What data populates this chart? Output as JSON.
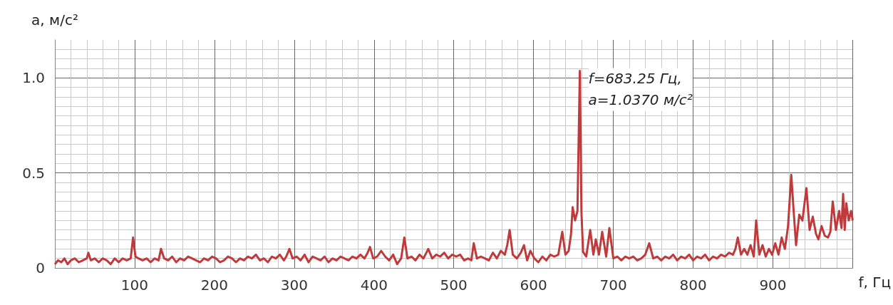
{
  "chart_data": {
    "type": "line",
    "xlabel": "f, Гц",
    "ylabel": "a, м/с²",
    "annotations": [
      "f=683.25 Гц,\na=1.0370 м/с²"
    ],
    "series": [
      {
        "color": "#c0393b",
        "x": [
          0,
          4,
          8,
          12,
          16,
          20,
          25,
          30,
          35,
          40,
          42,
          45,
          50,
          55,
          60,
          65,
          70,
          75,
          80,
          85,
          90,
          95,
          98,
          101,
          105,
          110,
          115,
          120,
          125,
          130,
          133,
          137,
          142,
          147,
          152,
          157,
          162,
          167,
          172,
          177,
          182,
          187,
          192,
          197,
          202,
          207,
          212,
          217,
          222,
          227,
          232,
          237,
          242,
          247,
          252,
          257,
          262,
          267,
          272,
          277,
          282,
          287,
          290,
          294,
          298,
          303,
          308,
          313,
          318,
          323,
          328,
          333,
          338,
          343,
          348,
          353,
          358,
          363,
          368,
          373,
          378,
          383,
          388,
          392,
          395,
          399,
          404,
          409,
          414,
          419,
          424,
          429,
          434,
          438,
          442,
          447,
          452,
          457,
          462,
          468,
          473,
          478,
          483,
          488,
          493,
          498,
          503,
          508,
          513,
          518,
          522,
          525,
          529,
          534,
          539,
          544,
          549,
          554,
          559,
          564,
          567,
          570,
          574,
          579,
          584,
          588,
          592,
          596,
          601,
          606,
          611,
          616,
          621,
          626,
          631,
          636,
          640,
          644,
          647,
          649,
          652,
          655,
          658,
          660,
          662,
          666,
          671,
          675,
          678,
          682,
          686,
          691,
          695,
          700,
          705,
          710,
          715,
          720,
          725,
          730,
          735,
          740,
          745,
          750,
          755,
          760,
          765,
          770,
          775,
          780,
          785,
          790,
          795,
          800,
          805,
          810,
          815,
          820,
          825,
          830,
          835,
          840,
          845,
          850,
          853,
          856,
          860,
          864,
          868,
          872,
          876,
          879,
          883,
          887,
          891,
          895,
          899,
          903,
          907,
          911,
          915,
          919,
          923,
          926,
          929,
          933,
          937,
          942,
          946,
          950,
          954,
          957,
          961,
          965,
          969,
          972,
          975,
          979,
          983,
          986,
          988,
          990,
          992,
          995,
          998,
          1000
        ],
        "values": [
          0.02,
          0.04,
          0.03,
          0.05,
          0.02,
          0.04,
          0.05,
          0.03,
          0.04,
          0.05,
          0.08,
          0.04,
          0.05,
          0.03,
          0.05,
          0.04,
          0.02,
          0.05,
          0.03,
          0.05,
          0.04,
          0.05,
          0.16,
          0.06,
          0.05,
          0.04,
          0.05,
          0.03,
          0.05,
          0.04,
          0.1,
          0.05,
          0.04,
          0.06,
          0.03,
          0.05,
          0.04,
          0.06,
          0.05,
          0.04,
          0.03,
          0.05,
          0.04,
          0.06,
          0.05,
          0.03,
          0.04,
          0.06,
          0.05,
          0.03,
          0.05,
          0.04,
          0.06,
          0.05,
          0.07,
          0.04,
          0.05,
          0.03,
          0.06,
          0.05,
          0.07,
          0.04,
          0.06,
          0.1,
          0.05,
          0.06,
          0.04,
          0.07,
          0.03,
          0.06,
          0.05,
          0.04,
          0.06,
          0.03,
          0.05,
          0.04,
          0.06,
          0.05,
          0.04,
          0.06,
          0.05,
          0.07,
          0.05,
          0.08,
          0.11,
          0.05,
          0.06,
          0.09,
          0.06,
          0.04,
          0.07,
          0.02,
          0.05,
          0.16,
          0.05,
          0.06,
          0.04,
          0.07,
          0.05,
          0.1,
          0.05,
          0.07,
          0.06,
          0.08,
          0.05,
          0.07,
          0.06,
          0.07,
          0.04,
          0.05,
          0.04,
          0.13,
          0.05,
          0.06,
          0.05,
          0.04,
          0.08,
          0.05,
          0.09,
          0.07,
          0.12,
          0.2,
          0.07,
          0.05,
          0.08,
          0.12,
          0.04,
          0.09,
          0.05,
          0.03,
          0.06,
          0.04,
          0.07,
          0.06,
          0.07,
          0.19,
          0.07,
          0.09,
          0.18,
          0.32,
          0.25,
          0.3,
          1.037,
          0.3,
          0.085,
          0.06,
          0.2,
          0.07,
          0.15,
          0.07,
          0.19,
          0.06,
          0.21,
          0.05,
          0.06,
          0.04,
          0.06,
          0.05,
          0.06,
          0.04,
          0.05,
          0.07,
          0.13,
          0.05,
          0.06,
          0.04,
          0.06,
          0.05,
          0.07,
          0.04,
          0.06,
          0.05,
          0.07,
          0.04,
          0.06,
          0.05,
          0.07,
          0.04,
          0.06,
          0.05,
          0.07,
          0.06,
          0.08,
          0.07,
          0.1,
          0.16,
          0.07,
          0.1,
          0.07,
          0.12,
          0.06,
          0.25,
          0.07,
          0.12,
          0.06,
          0.1,
          0.07,
          0.13,
          0.07,
          0.16,
          0.1,
          0.22,
          0.49,
          0.3,
          0.12,
          0.28,
          0.25,
          0.42,
          0.2,
          0.27,
          0.18,
          0.15,
          0.22,
          0.17,
          0.16,
          0.19,
          0.35,
          0.2,
          0.3,
          0.21,
          0.39,
          0.2,
          0.34,
          0.25,
          0.3,
          0.25
        ]
      }
    ],
    "xlim": [
      0,
      1000
    ],
    "xticks": [
      {
        "value": 0,
        "label": null
      },
      100,
      200,
      300,
      400,
      500,
      600,
      700,
      800,
      900,
      {
        "value": 1000,
        "label": null
      }
    ],
    "ylim": [
      0,
      1.2
    ],
    "yticks": [
      0,
      0.5,
      {
        "value": 1,
        "label": "1.0"
      }
    ],
    "grid": true,
    "marker": "none",
    "line_style": "solid"
  }
}
